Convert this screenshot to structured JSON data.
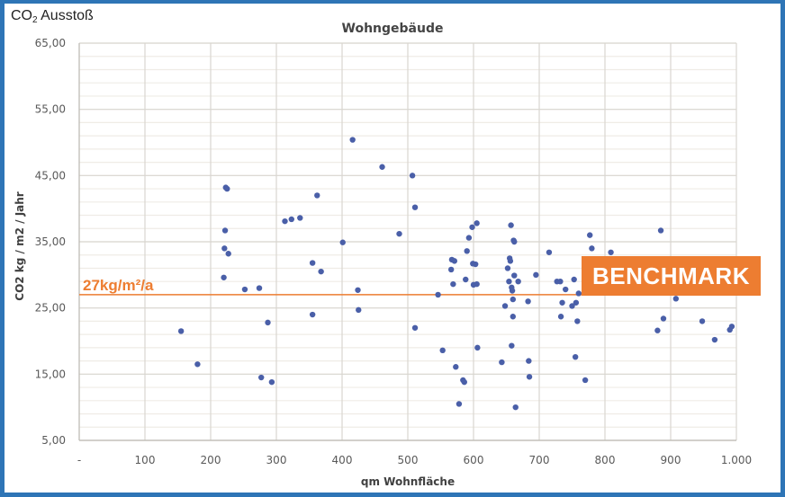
{
  "header": {
    "title_prefix": "CO",
    "title_sub": "2",
    "title_suffix": " Ausstoß"
  },
  "benchmark": {
    "label": "27kg/m²/a",
    "box_label": "BENCHMARK",
    "value": 27,
    "color": "#ed7d31"
  },
  "colors": {
    "points": "#4a5fa8",
    "grid": "#d9d6d0",
    "minor_grid": "#efece6",
    "frame": "#2e75b6",
    "benchmark": "#ed7d31"
  },
  "chart_data": {
    "type": "scatter",
    "title": "Wohngebäude",
    "xlabel": "qm Wohnfläche",
    "ylabel": "CO2 kg / m2 / Jahr",
    "xlim": [
      0,
      1000
    ],
    "ylim": [
      5,
      65
    ],
    "x_ticks": [
      "-",
      "100",
      "200",
      "300",
      "400",
      "500",
      "600",
      "700",
      "800",
      "900",
      "1.000"
    ],
    "y_ticks": [
      "5,00",
      "15,00",
      "25,00",
      "35,00",
      "45,00",
      "55,00",
      "65,00"
    ],
    "grid": true,
    "legend": null,
    "annotations": [
      {
        "type": "hline",
        "y": 27,
        "label": "27kg/m²/a"
      },
      {
        "type": "box",
        "text": "BENCHMARK"
      }
    ],
    "series": [
      {
        "name": "Wohngebäude",
        "points": [
          [
            155,
            21.5
          ],
          [
            180,
            16.5
          ],
          [
            220,
            29.6
          ],
          [
            221,
            34.0
          ],
          [
            222,
            36.7
          ],
          [
            223,
            43.2
          ],
          [
            225,
            43.0
          ],
          [
            227,
            33.2
          ],
          [
            252,
            27.8
          ],
          [
            274,
            28.0
          ],
          [
            277,
            14.5
          ],
          [
            287,
            22.8
          ],
          [
            293,
            13.8
          ],
          [
            313,
            38.1
          ],
          [
            323,
            38.4
          ],
          [
            336,
            38.6
          ],
          [
            355,
            31.8
          ],
          [
            355,
            24.0
          ],
          [
            362,
            42.0
          ],
          [
            368,
            30.5
          ],
          [
            401,
            34.9
          ],
          [
            416,
            50.4
          ],
          [
            424,
            27.7
          ],
          [
            425,
            24.7
          ],
          [
            461,
            46.3
          ],
          [
            487,
            36.2
          ],
          [
            507,
            45.0
          ],
          [
            511,
            40.2
          ],
          [
            511,
            22.0
          ],
          [
            546,
            27.0
          ],
          [
            553,
            18.6
          ],
          [
            566,
            30.8
          ],
          [
            567,
            32.3
          ],
          [
            569,
            28.6
          ],
          [
            571,
            32.1
          ],
          [
            573,
            16.1
          ],
          [
            578,
            10.5
          ],
          [
            584,
            14.1
          ],
          [
            586,
            13.8
          ],
          [
            588,
            29.3
          ],
          [
            590,
            33.6
          ],
          [
            593,
            35.6
          ],
          [
            598,
            37.2
          ],
          [
            599,
            31.7
          ],
          [
            600,
            28.5
          ],
          [
            603,
            31.6
          ],
          [
            605,
            37.8
          ],
          [
            605,
            28.6
          ],
          [
            606,
            19.0
          ],
          [
            643,
            16.8
          ],
          [
            648,
            25.3
          ],
          [
            652,
            31.0
          ],
          [
            654,
            29.0
          ],
          [
            655,
            32.5
          ],
          [
            656,
            32.1
          ],
          [
            657,
            37.5
          ],
          [
            658,
            28.1
          ],
          [
            659,
            27.6
          ],
          [
            660,
            26.3
          ],
          [
            660,
            23.7
          ],
          [
            661,
            35.2
          ],
          [
            662,
            35.0
          ],
          [
            658,
            19.3
          ],
          [
            662,
            29.9
          ],
          [
            664,
            10.0
          ],
          [
            668,
            29.0
          ],
          [
            683,
            26.0
          ],
          [
            684,
            17.0
          ],
          [
            685,
            14.6
          ],
          [
            695,
            30.0
          ],
          [
            715,
            33.4
          ],
          [
            727,
            29.0
          ],
          [
            732,
            29.0
          ],
          [
            733,
            23.7
          ],
          [
            735,
            25.8
          ],
          [
            740,
            27.8
          ],
          [
            750,
            25.3
          ],
          [
            753,
            29.3
          ],
          [
            755,
            17.6
          ],
          [
            756,
            25.8
          ],
          [
            758,
            23.0
          ],
          [
            760,
            27.2
          ],
          [
            770,
            14.1
          ],
          [
            777,
            36.0
          ],
          [
            780,
            34.0
          ],
          [
            809,
            33.4
          ],
          [
            880,
            21.6
          ],
          [
            885,
            36.7
          ],
          [
            889,
            23.4
          ],
          [
            908,
            26.4
          ],
          [
            948,
            23.0
          ],
          [
            967,
            20.2
          ],
          [
            990,
            21.7
          ],
          [
            993,
            22.2
          ]
        ]
      }
    ]
  }
}
